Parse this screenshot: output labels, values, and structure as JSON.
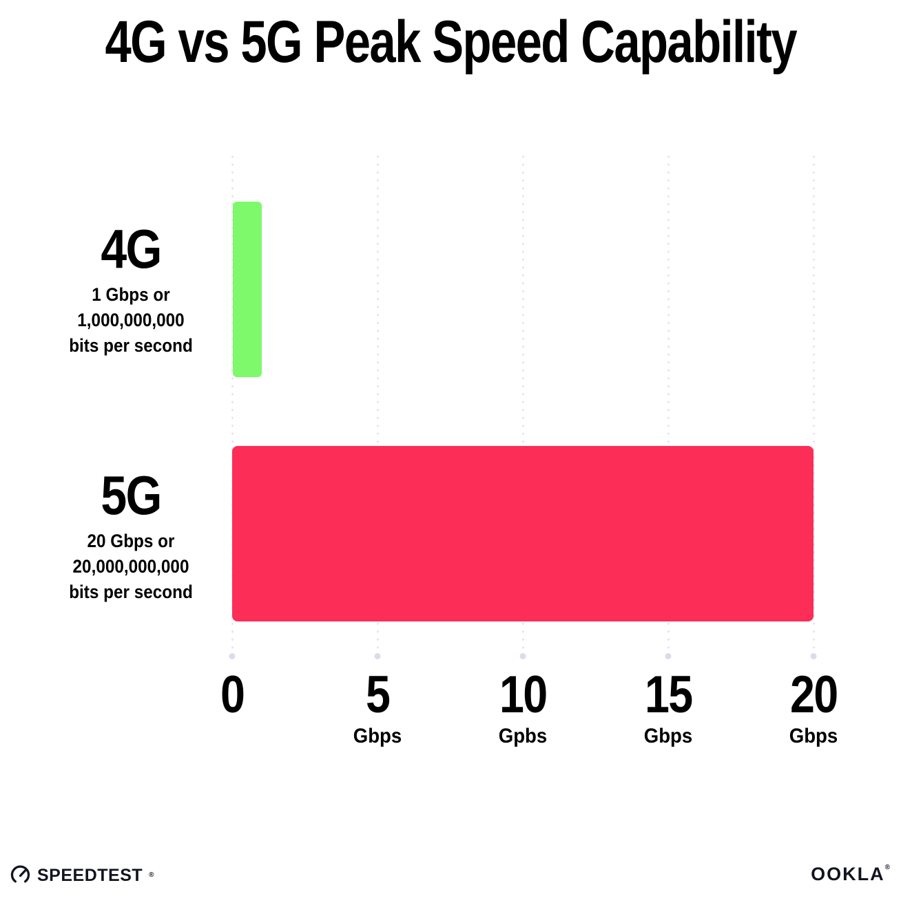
{
  "title": "4G vs 5G Peak Speed Capability",
  "chart_data": {
    "type": "bar",
    "orientation": "horizontal",
    "title": "4G vs 5G Peak Speed Capability",
    "categories": [
      "4G",
      "5G"
    ],
    "values": [
      1,
      20
    ],
    "bar_colors": [
      "#7df96b",
      "#fc2d57"
    ],
    "value_descriptions": [
      "1 Gbps or 1,000,000,000 bits per second",
      "20 Gbps or 20,000,000,000 bits per second"
    ],
    "xlim": [
      0,
      20
    ],
    "x_tick_values": [
      0,
      5,
      10,
      15,
      20
    ],
    "x_tick_labels": [
      "0",
      "5",
      "10",
      "15",
      "20"
    ],
    "x_tick_units": [
      "",
      "Gbps",
      "Gpbs",
      "Gbps",
      "Gbps"
    ],
    "xlabel": "Gbps",
    "ylabel": "",
    "grid": "vertical dotted",
    "gridline_color": "#e3e5f0",
    "legend": "none"
  },
  "rows": [
    {
      "label": "4G",
      "subs": [
        "1 Gbps or",
        "1,000,000,000",
        "bits per second"
      ],
      "color": "#7df96b"
    },
    {
      "label": "5G",
      "subs": [
        "20 Gbps or",
        "20,000,000,000",
        "bits per second"
      ],
      "color": "#fc2d57"
    }
  ],
  "footer": {
    "speedtest_label": "SPEEDTEST",
    "speedtest_trademark": "®",
    "speedtest_icon": "gauge-icon",
    "ookla_label": "OOKLA",
    "ookla_trademark": "®"
  }
}
